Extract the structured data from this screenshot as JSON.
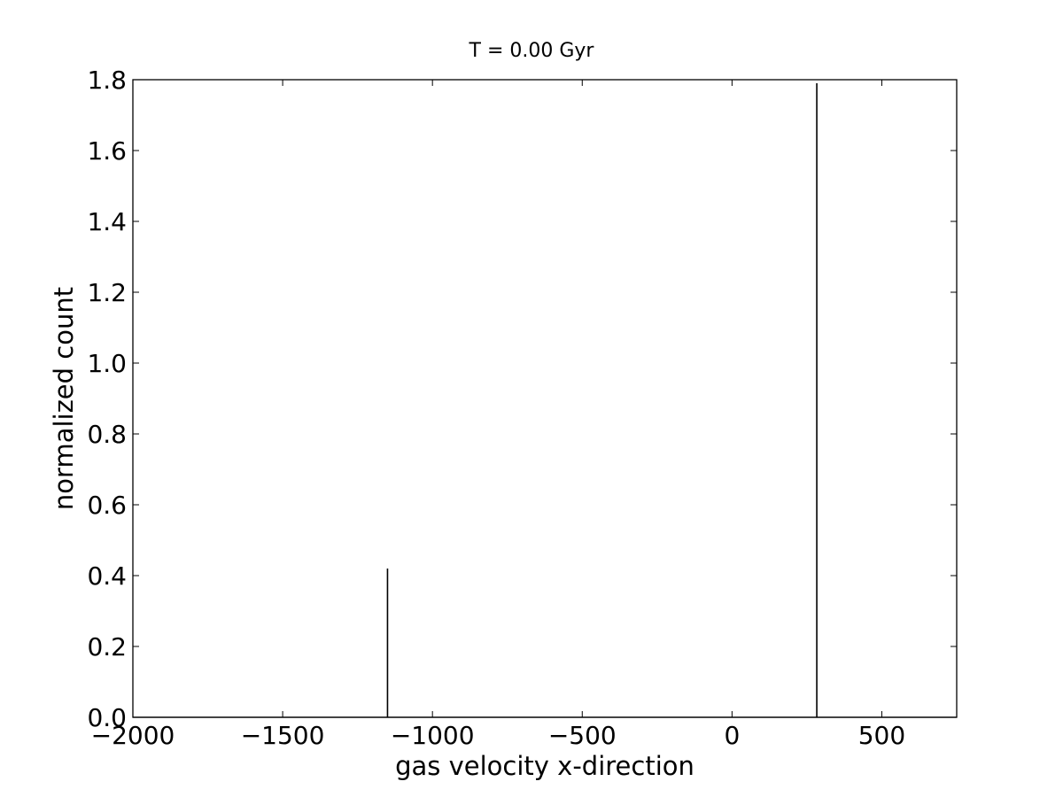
{
  "chart_data": {
    "type": "histogram",
    "title": "T = 0.00 Gyr",
    "xlabel": "gas velocity x-direction",
    "ylabel": "normalized count",
    "xlim": [
      -2000,
      750
    ],
    "ylim": [
      0,
      1.8
    ],
    "x_ticks": [
      -2000,
      -1500,
      -1000,
      -500,
      0,
      500
    ],
    "x_tick_labels": [
      "−2000",
      "−1500",
      "−1000",
      "−500",
      "0",
      "500"
    ],
    "y_ticks": [
      0,
      0.2,
      0.4,
      0.6,
      0.8,
      1.0,
      1.2,
      1.4,
      1.6,
      1.8
    ],
    "y_tick_labels": [
      "0.0",
      "0.2",
      "0.4",
      "0.6",
      "0.8",
      "1.0",
      "1.2",
      "1.4",
      "1.6",
      "1.8"
    ],
    "grid": false,
    "series": [
      {
        "style": "step",
        "color": "#000000",
        "spikes": [
          {
            "x": -1150,
            "y": 0.42
          },
          {
            "x": 283,
            "y": 1.79
          }
        ]
      }
    ]
  }
}
